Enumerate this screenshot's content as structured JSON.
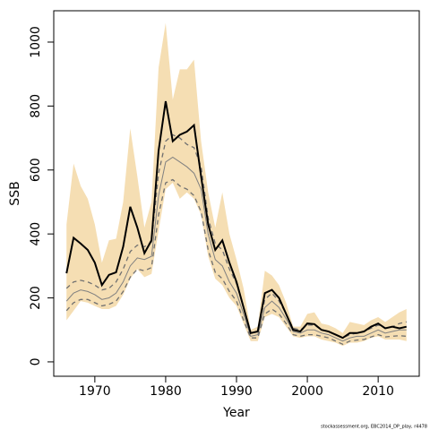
{
  "chart_data": {
    "type": "line",
    "x_label": "Year",
    "y_label": "SSB",
    "note": "stockassessment.org, EBC2014_DP_play, r4478",
    "x": [
      1966,
      1967,
      1968,
      1969,
      1970,
      1971,
      1972,
      1973,
      1974,
      1975,
      1976,
      1977,
      1978,
      1979,
      1980,
      1981,
      1982,
      1983,
      1984,
      1985,
      1986,
      1987,
      1988,
      1989,
      1990,
      1991,
      1992,
      1993,
      1994,
      1995,
      1996,
      1997,
      1998,
      1999,
      2000,
      2001,
      2002,
      2003,
      2004,
      2005,
      2006,
      2007,
      2008,
      2009,
      2010,
      2011,
      2012,
      2013,
      2014
    ],
    "band": {
      "color": "#f5deb3",
      "upper": [
        430,
        620,
        550,
        510,
        430,
        310,
        380,
        385,
        500,
        730,
        580,
        420,
        500,
        920,
        1060,
        820,
        915,
        915,
        945,
        690,
        530,
        420,
        530,
        400,
        320,
        230,
        100,
        110,
        285,
        270,
        240,
        185,
        110,
        110,
        150,
        155,
        120,
        115,
        105,
        90,
        125,
        120,
        115,
        130,
        140,
        125,
        140,
        155,
        165
      ],
      "lower": [
        130,
        160,
        190,
        185,
        175,
        165,
        165,
        175,
        210,
        260,
        290,
        265,
        275,
        410,
        540,
        560,
        510,
        530,
        510,
        460,
        330,
        260,
        240,
        200,
        175,
        120,
        65,
        65,
        140,
        150,
        140,
        110,
        80,
        75,
        80,
        80,
        70,
        65,
        60,
        50,
        60,
        60,
        65,
        75,
        80,
        70,
        70,
        70,
        65
      ]
    },
    "series": [
      {
        "color": "#808080",
        "width": 1,
        "dashed": false,
        "values": [
          190,
          215,
          225,
          220,
          210,
          195,
          200,
          215,
          250,
          300,
          325,
          320,
          330,
          520,
          625,
          640,
          625,
          610,
          590,
          540,
          400,
          320,
          300,
          250,
          215,
          150,
          80,
          85,
          170,
          190,
          170,
          135,
          95,
          90,
          100,
          100,
          90,
          85,
          75,
          65,
          75,
          80,
          80,
          90,
          100,
          90,
          95,
          100,
          100
        ]
      },
      {
        "color": "#707070",
        "width": 1.3,
        "dashed": true,
        "values": [
          230,
          250,
          255,
          250,
          240,
          225,
          230,
          250,
          290,
          345,
          365,
          360,
          375,
          590,
          690,
          710,
          700,
          680,
          670,
          610,
          450,
          370,
          350,
          290,
          245,
          170,
          90,
          95,
          195,
          215,
          190,
          150,
          105,
          100,
          115,
          115,
          100,
          95,
          85,
          75,
          85,
          90,
          95,
          105,
          115,
          105,
          110,
          120,
          125
        ]
      },
      {
        "color": "#707070",
        "width": 1.3,
        "dashed": true,
        "values": [
          160,
          185,
          195,
          195,
          185,
          175,
          180,
          190,
          220,
          265,
          290,
          285,
          295,
          460,
          560,
          570,
          550,
          540,
          520,
          470,
          350,
          280,
          260,
          220,
          190,
          130,
          75,
          75,
          150,
          165,
          150,
          120,
          85,
          80,
          85,
          85,
          80,
          75,
          65,
          55,
          65,
          68,
          70,
          78,
          85,
          78,
          80,
          82,
          80
        ]
      },
      {
        "color": "#000000",
        "width": 2,
        "dashed": false,
        "values": [
          277,
          388,
          370,
          350,
          310,
          240,
          272,
          280,
          360,
          485,
          420,
          340,
          380,
          660,
          815,
          690,
          710,
          720,
          740,
          580,
          430,
          350,
          380,
          310,
          250,
          170,
          90,
          95,
          215,
          225,
          200,
          150,
          100,
          95,
          120,
          118,
          100,
          95,
          85,
          75,
          90,
          90,
          95,
          110,
          120,
          105,
          110,
          105,
          110
        ]
      }
    ],
    "xlim": [
      1964.2,
      2015.8
    ],
    "ylim": [
      -45,
      1098
    ],
    "xticks": [
      1970,
      1980,
      1990,
      2000,
      2010
    ],
    "yticks": [
      0,
      200,
      400,
      600,
      800,
      1000
    ]
  }
}
